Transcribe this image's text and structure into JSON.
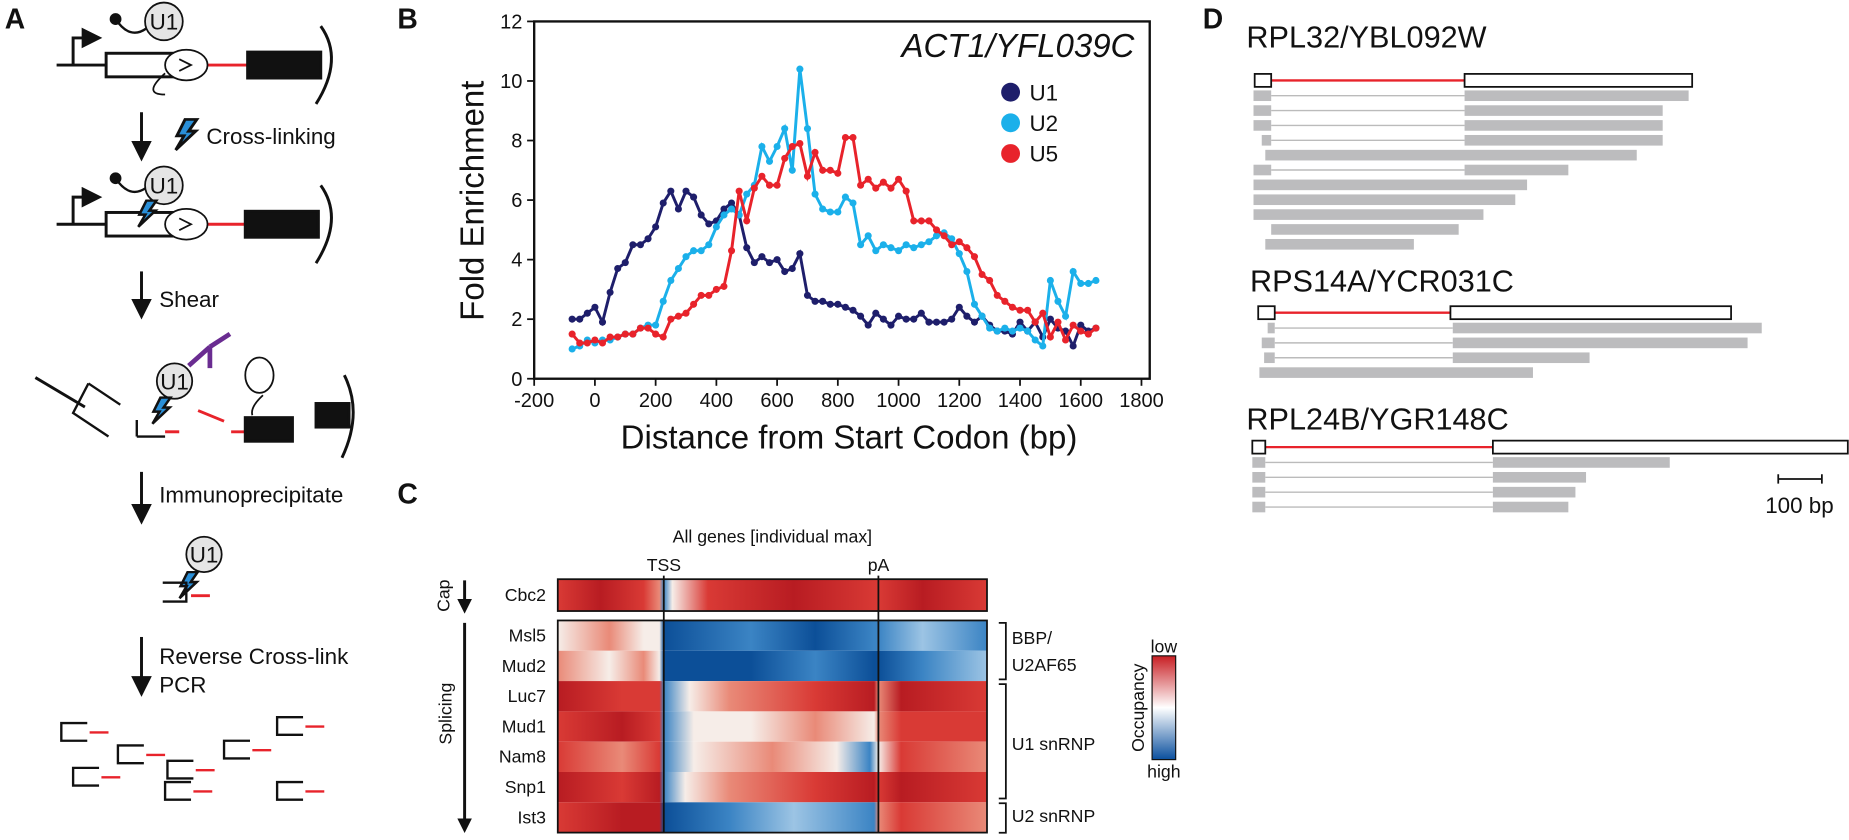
{
  "panel_labels": [
    "A",
    "B",
    "C",
    "D"
  ],
  "panel_a": {
    "steps": [
      "Cross-linking",
      "Shear",
      "Immunoprecipitate",
      "Reverse Cross-link",
      "PCR"
    ],
    "u1": [
      "U1",
      "U1",
      "U1",
      "U1"
    ]
  },
  "chart_data": {
    "type": "line",
    "title": "ACT1/YFL039C",
    "x_label": "Distance from Start Codon (bp)",
    "y_label": "Fold Enrichment",
    "xlim": [
      -200,
      1800
    ],
    "xticks": [
      -200,
      0,
      200,
      400,
      600,
      800,
      1000,
      1200,
      1400,
      1600,
      1800
    ],
    "ylim": [
      0,
      12
    ],
    "yticks": [
      0,
      2,
      4,
      6,
      8,
      10,
      12
    ],
    "legend": "upper right",
    "x": [
      -75,
      -50,
      -25,
      0,
      25,
      50,
      75,
      100,
      125,
      150,
      175,
      200,
      225,
      250,
      275,
      300,
      325,
      350,
      375,
      400,
      425,
      450,
      475,
      500,
      525,
      550,
      575,
      600,
      625,
      650,
      675,
      700,
      725,
      750,
      775,
      800,
      825,
      850,
      875,
      900,
      925,
      950,
      975,
      1000,
      1025,
      1050,
      1075,
      1100,
      1125,
      1150,
      1175,
      1200,
      1225,
      1250,
      1275,
      1300,
      1325,
      1350,
      1375,
      1400,
      1425,
      1450,
      1475,
      1500,
      1525,
      1550,
      1575,
      1600,
      1625,
      1650
    ],
    "series": [
      {
        "name": "U1",
        "color": "#1e1e6b",
        "values": [
          2.0,
          2.0,
          2.2,
          2.4,
          1.9,
          2.9,
          3.7,
          3.9,
          4.5,
          4.5,
          4.7,
          5.1,
          5.9,
          6.3,
          5.7,
          6.3,
          6.1,
          5.5,
          5.2,
          5.3,
          5.7,
          5.9,
          5.5,
          4.4,
          3.9,
          4.1,
          3.9,
          4.0,
          3.6,
          3.7,
          4.2,
          2.8,
          2.6,
          2.6,
          2.5,
          2.5,
          2.4,
          2.3,
          2.1,
          1.8,
          2.2,
          2.0,
          1.8,
          2.1,
          2.0,
          2.0,
          2.2,
          1.9,
          1.9,
          1.9,
          2.0,
          2.4,
          2.1,
          1.9,
          2.1,
          1.8,
          1.6,
          1.6,
          1.5,
          1.9,
          1.6,
          1.9,
          1.4,
          2.0,
          1.7,
          1.6,
          1.1,
          1.8,
          1.6,
          1.7
        ]
      },
      {
        "name": "U2",
        "color": "#1bb0ea",
        "values": [
          1.0,
          1.1,
          1.3,
          1.2,
          1.3,
          1.3,
          1.4,
          1.5,
          1.5,
          1.7,
          1.8,
          1.8,
          2.6,
          3.3,
          3.7,
          4.1,
          4.3,
          4.3,
          4.5,
          5.1,
          5.5,
          5.7,
          5.5,
          6.2,
          6.5,
          7.8,
          7.3,
          7.8,
          8.4,
          7.0,
          10.4,
          8.4,
          6.2,
          5.7,
          5.6,
          5.6,
          6.1,
          5.9,
          4.5,
          4.8,
          4.3,
          4.5,
          4.4,
          4.3,
          4.5,
          4.4,
          4.5,
          4.6,
          4.8,
          4.9,
          4.7,
          4.2,
          3.6,
          2.5,
          2.1,
          1.7,
          1.6,
          1.7,
          1.6,
          1.7,
          1.6,
          1.3,
          1.1,
          3.3,
          2.6,
          2.1,
          3.6,
          3.2,
          3.2,
          3.3
        ]
      },
      {
        "name": "U5",
        "color": "#e8232b",
        "values": [
          1.5,
          1.2,
          1.2,
          1.3,
          1.2,
          1.4,
          1.4,
          1.5,
          1.5,
          1.7,
          1.7,
          1.5,
          1.4,
          2.0,
          2.1,
          2.2,
          2.5,
          2.8,
          2.8,
          3.0,
          3.1,
          4.3,
          6.3,
          5.3,
          6.4,
          6.8,
          6.5,
          6.5,
          7.4,
          7.8,
          7.9,
          6.8,
          7.6,
          7.0,
          7.0,
          6.9,
          8.1,
          8.1,
          6.5,
          6.7,
          6.4,
          6.6,
          6.4,
          6.7,
          6.3,
          5.3,
          5.3,
          5.3,
          5.0,
          4.8,
          4.5,
          4.6,
          4.4,
          4.1,
          3.5,
          3.3,
          2.8,
          2.6,
          2.4,
          2.3,
          2.3,
          1.9,
          2.2,
          1.4,
          1.9,
          1.3,
          1.8,
          1.6,
          1.5,
          1.7
        ]
      }
    ]
  },
  "panel_c": {
    "title": "All genes [individual max]",
    "tss": "TSS",
    "pa": "pA",
    "rows": [
      "Cbc2",
      "Msl5",
      "Mud2",
      "Luc7",
      "Mud1",
      "Nam8",
      "Snp1",
      "Ist3"
    ],
    "groups": [
      "Cap",
      "Splicing"
    ],
    "complexes": [
      "BBP/",
      "U2AF65",
      "U1 snRNP",
      "U2 snRNP"
    ],
    "legend": {
      "low": "low",
      "title": "Occupancy",
      "high": "high"
    }
  },
  "panel_d": {
    "genes": [
      "RPL32/YBL092W",
      "RPS14A/YCR031C",
      "RPL24B/YGR148C"
    ],
    "scale": "100 bp"
  }
}
